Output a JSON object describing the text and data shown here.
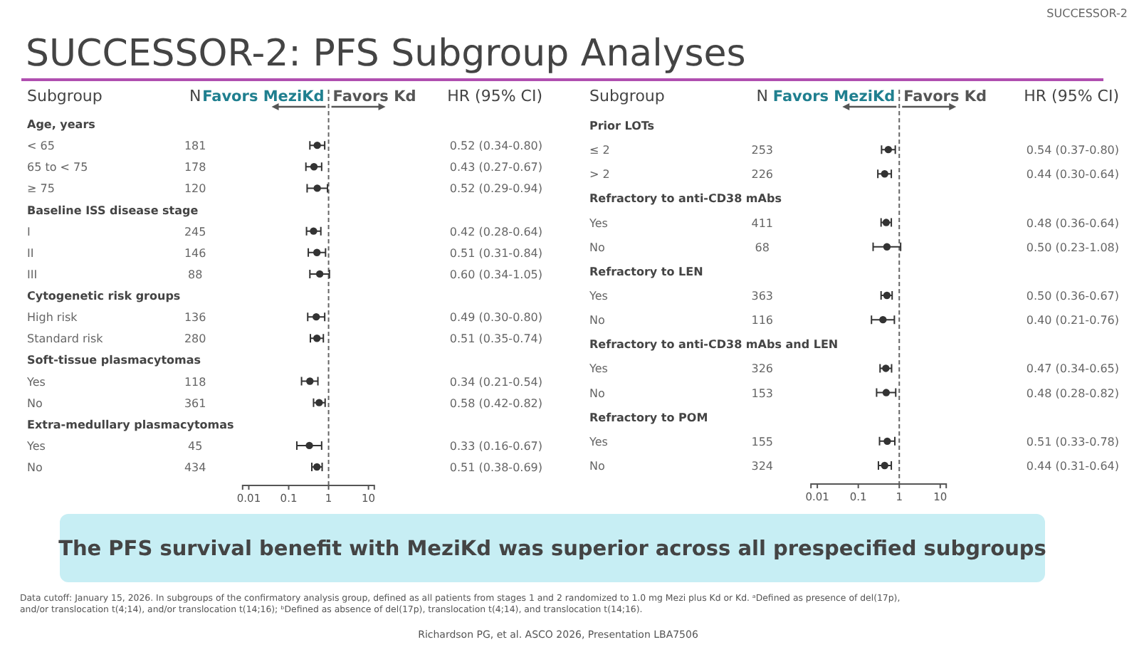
{
  "chart_data": [
    {
      "type": "scatter",
      "orientation": "horizontal",
      "title": "SUCCESSOR-2: PFS Subgroup Analyses",
      "log": "x",
      "xlim": [
        0.007,
        14
      ],
      "xticks": [
        0.01,
        0.1,
        1,
        10
      ],
      "marker": "circle",
      "grid": false,
      "categories": [
        "Age, years",
        "< 65",
        "65 to < 75",
        "≥ 75",
        "Baseline ISS disease stage",
        "I",
        "II",
        "III",
        "Cytogenetic risk groups",
        "High risk",
        "Standard risk",
        "Soft-tissue plasmacytomas",
        "Yes",
        "No",
        "Extra-medullary plasmacytomas",
        "Yes",
        "No"
      ],
      "y2_categories": [
        null,
        "181",
        "178",
        "120",
        null,
        "245",
        "146",
        "88",
        null,
        "136",
        "280",
        null,
        "118",
        "361",
        null,
        "45",
        "434"
      ],
      "series": [
        {
          "color": "#333333",
          "values": [
            null,
            0.52,
            0.43,
            0.52,
            null,
            0.42,
            0.51,
            0.6,
            null,
            0.49,
            0.51,
            null,
            0.34,
            0.58,
            null,
            0.33,
            0.51
          ],
          "errors": [
            null,
            [
              0.34,
              0.8
            ],
            [
              0.27,
              0.67
            ],
            [
              0.29,
              0.94
            ],
            null,
            [
              0.28,
              0.64
            ],
            [
              0.31,
              0.84
            ],
            [
              0.34,
              1.05
            ],
            null,
            [
              0.3,
              0.8
            ],
            [
              0.35,
              0.74
            ],
            null,
            [
              0.21,
              0.54
            ],
            [
              0.42,
              0.82
            ],
            null,
            [
              0.16,
              0.67
            ],
            [
              0.38,
              0.69
            ]
          ],
          "value_labels": [
            null,
            "0.52 (0.34-0.80)",
            "0.43 (0.27-0.67)",
            "0.52 (0.29-0.94)",
            null,
            "0.42 (0.28-0.64)",
            "0.51 (0.31-0.84)",
            "0.60 (0.34-1.05)",
            null,
            "0.49 (0.30-0.80)",
            "0.51 (0.35-0.74)",
            null,
            "0.34 (0.21-0.54)",
            "0.58 (0.42-0.82)",
            null,
            "0.33 (0.16-0.67)",
            "0.51 (0.38-0.69)"
          ]
        }
      ],
      "ref_lines": [
        {
          "axis": "x",
          "value": 1,
          "line_style": "dashed",
          "color": "#666666"
        }
      ],
      "annotations": [
        "Subgroup",
        "N",
        "Favors MeziKd",
        "Favors Kd",
        "HR (95% CI)",
        "SUCCESSOR-2",
        "The PFS survival benefit with MeziKd was superior across all prespecified subgroups",
        "Data cutoff: January 15, 2026. In subgroups of the confirmatory analysis group, defined as all patients from stages 1 and 2 randomized to 1.0 mg Mezi plus Kd or Kd. ᵃDefined as presence of del(17p), and/or translocation t(4;14), and/or translocation t(14;16); ᵇDefined as absence of del(17p), translocation t(4;14), and translocation t(14;16).",
        "Richardson PG, et al. ASCO 2026, Presentation LBA7506"
      ]
    },
    {
      "type": "scatter",
      "orientation": "horizontal",
      "log": "x",
      "xlim": [
        0.007,
        14
      ],
      "xticks": [
        0.01,
        0.1,
        1,
        10
      ],
      "marker": "circle",
      "grid": false,
      "categories": [
        "Prior LOTs",
        "≤ 2",
        "> 2",
        "Refractory to anti-CD38 mAbs",
        "Yes",
        "No",
        "Refractory to LEN",
        "Yes",
        "No",
        "Refractory to anti-CD38 mAbs and LEN",
        "Yes",
        "No",
        "Refractory to POM",
        "Yes",
        "No"
      ],
      "y2_categories": [
        null,
        "253",
        "226",
        null,
        "411",
        "68",
        null,
        "363",
        "116",
        null,
        "326",
        "153",
        null,
        "155",
        "324"
      ],
      "series": [
        {
          "color": "#333333",
          "values": [
            null,
            0.54,
            0.44,
            null,
            0.48,
            0.5,
            null,
            0.5,
            0.4,
            null,
            0.47,
            0.48,
            null,
            0.51,
            0.44
          ],
          "errors": [
            null,
            [
              0.37,
              0.8
            ],
            [
              0.3,
              0.64
            ],
            null,
            [
              0.36,
              0.64
            ],
            [
              0.23,
              1.08
            ],
            null,
            [
              0.36,
              0.67
            ],
            [
              0.21,
              0.76
            ],
            null,
            [
              0.34,
              0.65
            ],
            [
              0.28,
              0.82
            ],
            null,
            [
              0.33,
              0.78
            ],
            [
              0.31,
              0.64
            ]
          ],
          "value_labels": [
            null,
            "0.54 (0.37-0.80)",
            "0.44 (0.30-0.64)",
            null,
            "0.48 (0.36-0.64)",
            "0.50 (0.23-1.08)",
            null,
            "0.50 (0.36-0.67)",
            "0.40 (0.21-0.76)",
            null,
            "0.47 (0.34-0.65)",
            "0.48 (0.28-0.82)",
            null,
            "0.51 (0.33-0.78)",
            "0.44 (0.31-0.64)"
          ]
        }
      ],
      "ref_lines": [
        {
          "axis": "x",
          "value": 1,
          "line_style": "dashed",
          "color": "#666666"
        }
      ],
      "annotations": [
        "Subgroup",
        "N",
        "Favors MeziKd",
        "Favors Kd",
        "HR (95% CI)"
      ]
    }
  ]
}
